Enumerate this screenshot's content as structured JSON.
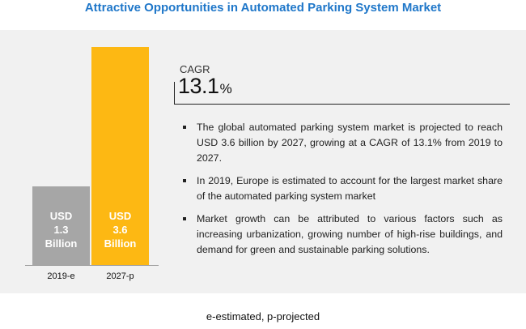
{
  "title": "Attractive Opportunities in Automated Parking System Market",
  "chart_data": {
    "type": "bar",
    "categories": [
      "2019-e",
      "2027-p"
    ],
    "values": [
      1.3,
      3.6
    ],
    "unit": "USD Billion",
    "bar_labels": [
      [
        "USD",
        "1.3",
        "Billion"
      ],
      [
        "USD",
        "3.6",
        "Billion"
      ]
    ],
    "colors": [
      "#a6a6a6",
      "#fdb813"
    ],
    "xlabel": "",
    "ylabel": "",
    "ylim": [
      0,
      3.6
    ],
    "grid": false,
    "legend": "none"
  },
  "cagr": {
    "label": "CAGR",
    "value": "13.1",
    "unit": "%"
  },
  "highlights": [
    "The global automated parking system market is projected to reach USD 3.6 billion by 2027, growing at a CAGR of 13.1% from 2019 to 2027.",
    "In 2019, Europe is estimated to account for the largest market share of the automated parking system market",
    "Market growth can be attributed to various factors such as increasing urbanization, growing number of high-rise buildings, and demand for green and sustainable parking solutions."
  ],
  "footnote": "e-estimated, p-projected"
}
